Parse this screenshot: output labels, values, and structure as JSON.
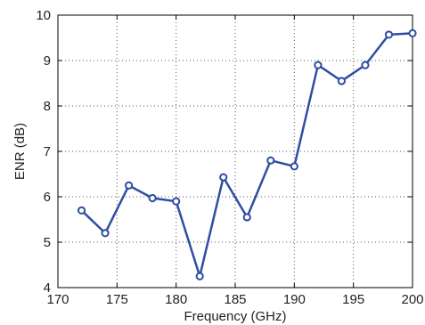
{
  "chart_data": {
    "type": "line",
    "title": "",
    "xlabel": "Frequency (GHz)",
    "ylabel": "ENR (dB)",
    "xlim": [
      170,
      200
    ],
    "ylim": [
      4,
      10
    ],
    "xticks": [
      170,
      175,
      180,
      185,
      190,
      195,
      200
    ],
    "yticks": [
      4,
      5,
      6,
      7,
      8,
      9,
      10
    ],
    "xtick_labels": [
      "170",
      "175",
      "180",
      "185",
      "190",
      "195",
      "200"
    ],
    "ytick_labels": [
      "4",
      "5",
      "6",
      "7",
      "8",
      "9",
      "10"
    ],
    "grid": true,
    "grid_style": "dotted",
    "marker": "circle-open",
    "series": [
      {
        "color": "#2f4ea3",
        "x": [
          172,
          174,
          176,
          178,
          180,
          182,
          184,
          186,
          188,
          190,
          192,
          194,
          196,
          198,
          200
        ],
        "y": [
          5.7,
          5.2,
          6.25,
          5.97,
          5.9,
          4.25,
          6.43,
          5.55,
          6.8,
          6.67,
          8.9,
          8.55,
          8.9,
          9.57,
          9.6
        ]
      }
    ]
  }
}
